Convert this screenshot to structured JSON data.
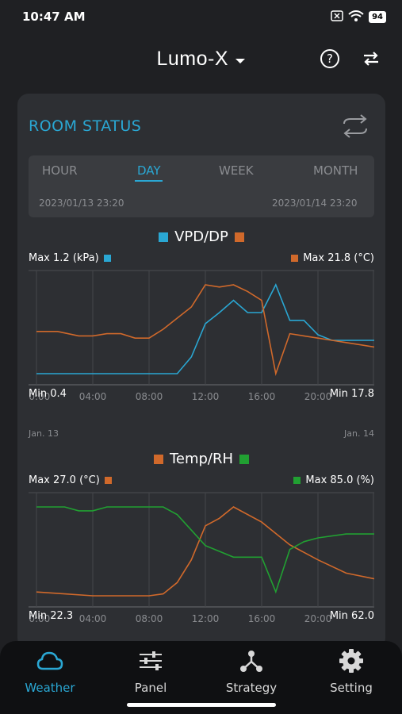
{
  "status": {
    "time": "10:47 AM",
    "battery": "94"
  },
  "header": {
    "title": "Lumo-X",
    "help_label": "?"
  },
  "room": {
    "title": "ROOM STATUS"
  },
  "range": {
    "tabs": [
      "HOUR",
      "DAY",
      "WEEK",
      "MONTH"
    ],
    "active": "DAY",
    "start": "2023/01/13  23:20",
    "end": "2023/01/14  23:20"
  },
  "colors": {
    "accent": "#2aa7d3",
    "vpd": "#2aa7d3",
    "dp": "#d0692b",
    "temp": "#d0692b",
    "rh": "#21a032"
  },
  "chart_data": [
    {
      "type": "line",
      "title": "VPD/DP",
      "x_ticks": [
        "00:00",
        "04:00",
        "08:00",
        "12:00",
        "16:00",
        "20:00"
      ],
      "x_start_label": "Jan. 13",
      "x_end_label": "Jan. 14",
      "left_max_label": "Max 1.2 (kPa)",
      "right_max_label": "Max 21.8 (°C)",
      "left_min_label": "Min 0.4",
      "right_min_label": "Min 17.8",
      "left_range": [
        0.4,
        1.2
      ],
      "right_range": [
        17.8,
        21.8
      ],
      "x": [
        0,
        2,
        4,
        6,
        8,
        10,
        12,
        14,
        16,
        18,
        20,
        22,
        24
      ],
      "series": [
        {
          "name": "VPD",
          "axis": "left",
          "color": "#2aa7d3",
          "x": [
            0,
            2,
            4,
            6,
            8,
            9,
            10,
            11,
            12,
            13,
            14,
            15,
            16,
            17,
            18,
            19,
            20,
            21,
            22,
            23,
            24
          ],
          "values": [
            0.4,
            0.4,
            0.4,
            0.4,
            0.4,
            0.4,
            0.4,
            0.55,
            0.85,
            0.95,
            1.06,
            0.95,
            0.95,
            1.2,
            0.88,
            0.88,
            0.75,
            0.7,
            0.7,
            0.7,
            0.7
          ]
        },
        {
          "name": "DP",
          "axis": "right",
          "color": "#d0692b",
          "x": [
            0,
            1.5,
            3,
            4,
            5,
            6,
            7,
            8,
            9,
            10,
            11,
            12,
            13,
            14,
            15,
            16,
            17,
            18,
            19,
            20,
            21,
            22,
            23,
            24
          ],
          "values": [
            19.7,
            19.7,
            19.5,
            19.5,
            19.6,
            19.6,
            19.4,
            19.4,
            19.8,
            20.3,
            20.8,
            21.8,
            21.7,
            21.8,
            21.5,
            21.1,
            17.8,
            19.6,
            19.5,
            19.4,
            19.3,
            19.2,
            19.1,
            19.0
          ]
        }
      ]
    },
    {
      "type": "line",
      "title": "Temp/RH",
      "x_ticks": [
        "00:00",
        "04:00",
        "08:00",
        "12:00",
        "16:00",
        "20:00"
      ],
      "left_max_label": "Max 27.0 (°C)",
      "right_max_label": "Max 85.0 (%)",
      "left_min_label": "Min 22.3",
      "right_min_label": "Min 62.0",
      "left_range": [
        22.3,
        27.0
      ],
      "right_range": [
        62.0,
        85.0
      ],
      "series": [
        {
          "name": "Temp",
          "axis": "left",
          "color": "#d0692b",
          "x": [
            0,
            2,
            4,
            6,
            8,
            9,
            10,
            11,
            12,
            13,
            14,
            16,
            18,
            20,
            22,
            24
          ],
          "values": [
            22.5,
            22.4,
            22.3,
            22.3,
            22.3,
            22.4,
            23.0,
            24.2,
            26.0,
            26.4,
            27.0,
            26.2,
            25.0,
            24.2,
            23.5,
            23.2
          ]
        },
        {
          "name": "RH",
          "axis": "right",
          "color": "#21a032",
          "x": [
            0,
            2,
            3,
            4,
            5,
            6,
            8,
            9,
            10,
            11,
            12,
            14,
            16,
            17,
            18,
            19,
            20,
            22,
            24
          ],
          "values": [
            85,
            85,
            84,
            84,
            85,
            85,
            85,
            85,
            83,
            79,
            75,
            72,
            72,
            63,
            74,
            76,
            77,
            78,
            78
          ]
        }
      ]
    }
  ],
  "chart_labels": {
    "chart1_start": "Jan. 13",
    "chart1_end": "Jan. 14"
  },
  "nav": [
    {
      "label": "Weather",
      "icon": "cloud-icon",
      "active": true
    },
    {
      "label": "Panel",
      "icon": "sliders-icon",
      "active": false
    },
    {
      "label": "Strategy",
      "icon": "strategy-icon",
      "active": false
    },
    {
      "label": "Setting",
      "icon": "gear-icon",
      "active": false
    }
  ]
}
